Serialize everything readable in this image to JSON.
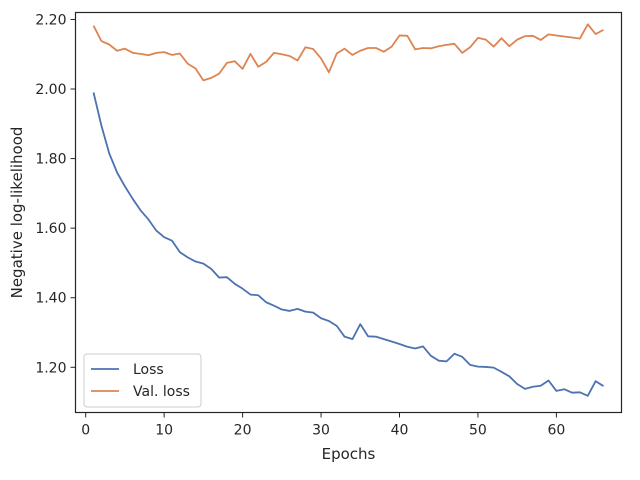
{
  "chart_data": {
    "type": "line",
    "xlabel": "Epochs",
    "ylabel": "Negative log-likelihood",
    "xlim": [
      -1.3,
      68.3
    ],
    "ylim": [
      1.07,
      2.22
    ],
    "xticks": [
      0,
      10,
      20,
      30,
      40,
      50,
      60
    ],
    "xtick_labels": [
      "0",
      "10",
      "20",
      "30",
      "40",
      "50",
      "60"
    ],
    "yticks": [
      1.2,
      1.4,
      1.6,
      1.8,
      2.0,
      2.2
    ],
    "ytick_labels": [
      "1.20",
      "1.40",
      "1.60",
      "1.80",
      "2.00",
      "2.20"
    ],
    "grid": false,
    "legend_position": "lower-left",
    "x": [
      1,
      2,
      3,
      4,
      5,
      6,
      7,
      8,
      9,
      10,
      11,
      12,
      13,
      14,
      15,
      16,
      17,
      18,
      19,
      20,
      21,
      22,
      23,
      24,
      25,
      26,
      27,
      28,
      29,
      30,
      31,
      32,
      33,
      34,
      35,
      36,
      37,
      38,
      39,
      40,
      41,
      42,
      43,
      44,
      45,
      46,
      47,
      48,
      49,
      50,
      51,
      52,
      53,
      54,
      55,
      56,
      57,
      58,
      59,
      60,
      61,
      62,
      63,
      64,
      65,
      66
    ],
    "series": [
      {
        "name": "Loss",
        "color": "#4c72b0",
        "values": [
          1.99,
          1.895,
          1.815,
          1.76,
          1.72,
          1.684,
          1.651,
          1.625,
          1.593,
          1.574,
          1.564,
          1.531,
          1.516,
          1.504,
          1.498,
          1.483,
          1.458,
          1.459,
          1.44,
          1.426,
          1.409,
          1.407,
          1.387,
          1.377,
          1.366,
          1.362,
          1.368,
          1.36,
          1.357,
          1.341,
          1.333,
          1.319,
          1.288,
          1.281,
          1.324,
          1.289,
          1.288,
          1.281,
          1.274,
          1.267,
          1.259,
          1.254,
          1.26,
          1.233,
          1.219,
          1.217,
          1.239,
          1.23,
          1.207,
          1.202,
          1.201,
          1.199,
          1.187,
          1.174,
          1.152,
          1.138,
          1.144,
          1.147,
          1.162,
          1.132,
          1.137,
          1.127,
          1.128,
          1.118,
          1.16,
          1.146
        ]
      },
      {
        "name": "Val. loss",
        "color": "#dd8452",
        "values": [
          2.182,
          2.138,
          2.128,
          2.11,
          2.116,
          2.104,
          2.101,
          2.097,
          2.104,
          2.106,
          2.098,
          2.102,
          2.073,
          2.059,
          2.025,
          2.032,
          2.044,
          2.075,
          2.08,
          2.058,
          2.101,
          2.064,
          2.078,
          2.104,
          2.1,
          2.095,
          2.082,
          2.12,
          2.115,
          2.088,
          2.048,
          2.102,
          2.116,
          2.098,
          2.11,
          2.118,
          2.118,
          2.107,
          2.122,
          2.154,
          2.153,
          2.114,
          2.118,
          2.117,
          2.123,
          2.127,
          2.13,
          2.104,
          2.12,
          2.147,
          2.142,
          2.122,
          2.146,
          2.123,
          2.142,
          2.152,
          2.153,
          2.141,
          2.157,
          2.154,
          2.151,
          2.148,
          2.145,
          2.186,
          2.158,
          2.17
        ]
      }
    ]
  }
}
